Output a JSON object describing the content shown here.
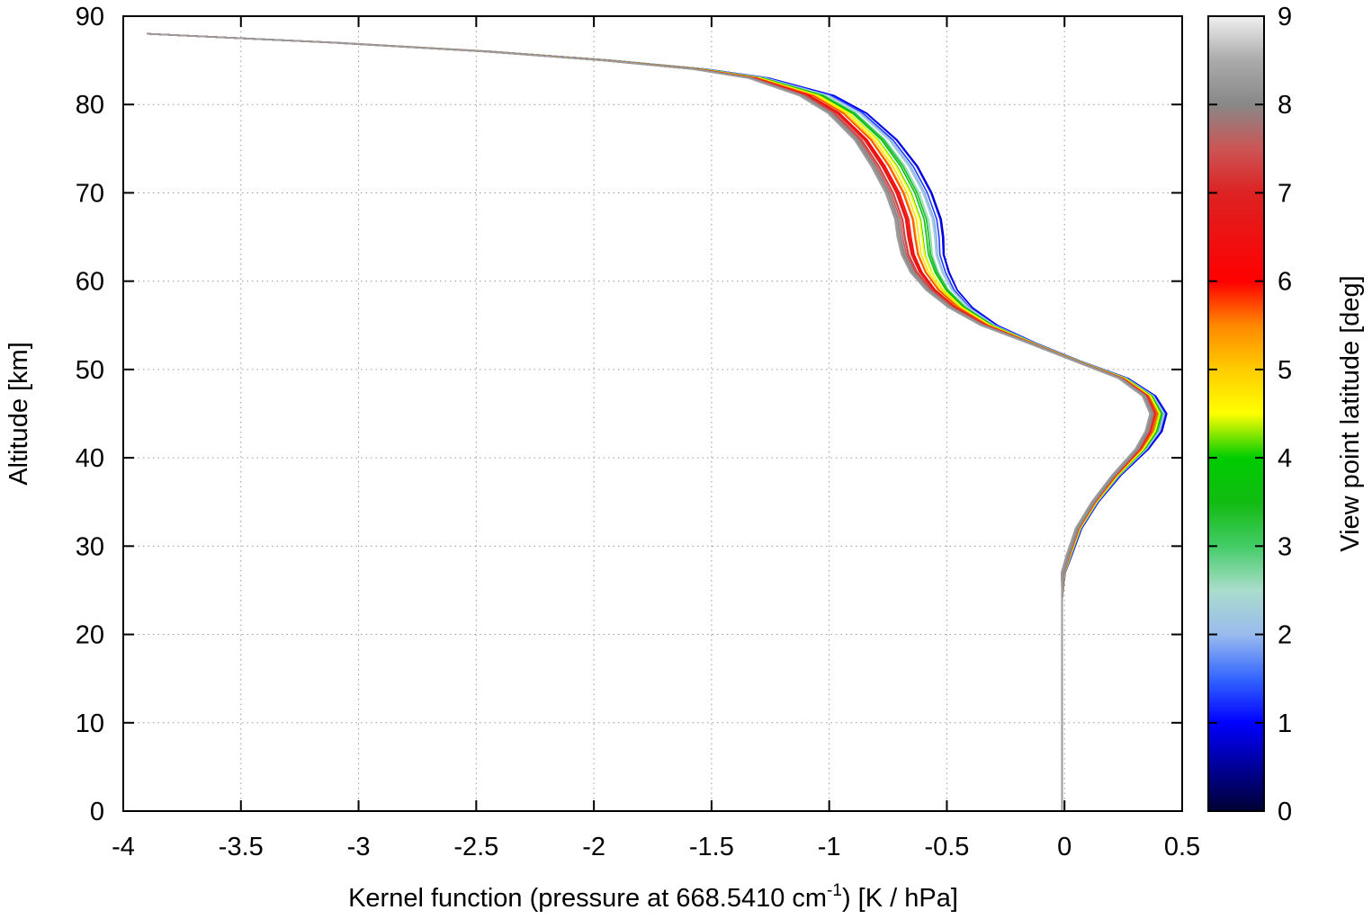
{
  "chart_data": {
    "type": "line",
    "xlabel_main": "Kernel function (pressure at 668.5410 cm",
    "xlabel_sup": "-1",
    "xlabel_tail": ") [K / hPa]",
    "ylabel": "Altitude [km]",
    "colorbar_label": "View point latitude [deg]",
    "xlim": [
      -4,
      0.5
    ],
    "ylim": [
      0,
      90
    ],
    "x_ticks": [
      "-4",
      "-3.5",
      "-3",
      "-2.5",
      "-2",
      "-1.5",
      "-1",
      "-0.5",
      "0",
      "0.5"
    ],
    "y_ticks": [
      "0",
      "10",
      "20",
      "30",
      "40",
      "50",
      "60",
      "70",
      "80",
      "90"
    ],
    "colorbar_range": [
      0,
      9
    ],
    "colorbar_ticks": [
      "0",
      "1",
      "2",
      "3",
      "4",
      "5",
      "6",
      "7",
      "8",
      "9"
    ],
    "colormap": [
      {
        "value": 0,
        "color": "#000033"
      },
      {
        "value": 0.5,
        "color": "#000099"
      },
      {
        "value": 1,
        "color": "#0000ff"
      },
      {
        "value": 1.5,
        "color": "#3366ff"
      },
      {
        "value": 2,
        "color": "#99bbee"
      },
      {
        "value": 2.5,
        "color": "#aaddcc"
      },
      {
        "value": 3,
        "color": "#44cc66"
      },
      {
        "value": 3.5,
        "color": "#11bb11"
      },
      {
        "value": 4,
        "color": "#00cc00"
      },
      {
        "value": 4.5,
        "color": "#ffff00"
      },
      {
        "value": 5,
        "color": "#ffcc00"
      },
      {
        "value": 5.5,
        "color": "#ff8800"
      },
      {
        "value": 6,
        "color": "#ff0000"
      },
      {
        "value": 7,
        "color": "#dd2222"
      },
      {
        "value": 7.5,
        "color": "#cc5555"
      },
      {
        "value": 8,
        "color": "#888888"
      },
      {
        "value": 8.5,
        "color": "#aaaaaa"
      },
      {
        "value": 9,
        "color": "#f0f0f0"
      }
    ],
    "grid": true,
    "series_profile": [
      {
        "y": 0,
        "x": -0.01,
        "dx": 0
      },
      {
        "y": 10,
        "x": -0.01,
        "dx": 0
      },
      {
        "y": 20,
        "x": -0.01,
        "dx": 0
      },
      {
        "y": 24,
        "x": -0.01,
        "dx": 0
      },
      {
        "y": 27,
        "x": -0.005,
        "dx": 0.003
      },
      {
        "y": 29,
        "x": 0.02,
        "dx": 0.008
      },
      {
        "y": 32,
        "x": 0.06,
        "dx": 0.01
      },
      {
        "y": 35,
        "x": 0.13,
        "dx": 0.012
      },
      {
        "y": 38,
        "x": 0.22,
        "dx": 0.018
      },
      {
        "y": 41,
        "x": 0.33,
        "dx": 0.03
      },
      {
        "y": 43,
        "x": 0.38,
        "dx": 0.04
      },
      {
        "y": 45,
        "x": 0.4,
        "dx": 0.04
      },
      {
        "y": 47,
        "x": 0.36,
        "dx": 0.03
      },
      {
        "y": 49,
        "x": 0.25,
        "dx": 0.02
      },
      {
        "y": 51,
        "x": 0.05,
        "dx": 0.01
      },
      {
        "y": 53,
        "x": -0.14,
        "dx": 0.015
      },
      {
        "y": 55,
        "x": -0.32,
        "dx": 0.04
      },
      {
        "y": 57,
        "x": -0.44,
        "dx": 0.06
      },
      {
        "y": 59,
        "x": -0.52,
        "dx": 0.08
      },
      {
        "y": 61,
        "x": -0.57,
        "dx": 0.1
      },
      {
        "y": 63,
        "x": -0.6,
        "dx": 0.11
      },
      {
        "y": 65,
        "x": -0.61,
        "dx": 0.12
      },
      {
        "y": 67,
        "x": -0.62,
        "dx": 0.12
      },
      {
        "y": 70,
        "x": -0.66,
        "dx": 0.12
      },
      {
        "y": 73,
        "x": -0.72,
        "dx": 0.12
      },
      {
        "y": 76,
        "x": -0.8,
        "dx": 0.11
      },
      {
        "y": 79,
        "x": -0.92,
        "dx": 0.1
      },
      {
        "y": 81,
        "x": -1.05,
        "dx": 0.09
      },
      {
        "y": 83,
        "x": -1.3,
        "dx": 0.05
      },
      {
        "y": 84,
        "x": -1.55,
        "dx": 0.03
      },
      {
        "y": 85,
        "x": -1.95,
        "dx": 0.02
      },
      {
        "y": 86,
        "x": -2.45,
        "dx": 0.015
      },
      {
        "y": 87,
        "x": -3.1,
        "dx": 0.01
      },
      {
        "y": 88,
        "x": -3.9,
        "dx": 0.0
      }
    ],
    "series_latitudes": [
      0.6,
      1.0,
      1.3,
      1.6,
      2.0,
      2.3,
      2.6,
      3.0,
      3.3,
      3.6,
      3.9,
      4.2,
      4.5,
      4.8,
      5.1,
      5.4,
      5.7,
      6.0,
      6.3,
      6.6,
      6.8,
      7.0,
      7.2,
      7.4,
      7.6,
      7.8,
      8.0,
      8.1,
      8.2,
      8.3
    ]
  }
}
